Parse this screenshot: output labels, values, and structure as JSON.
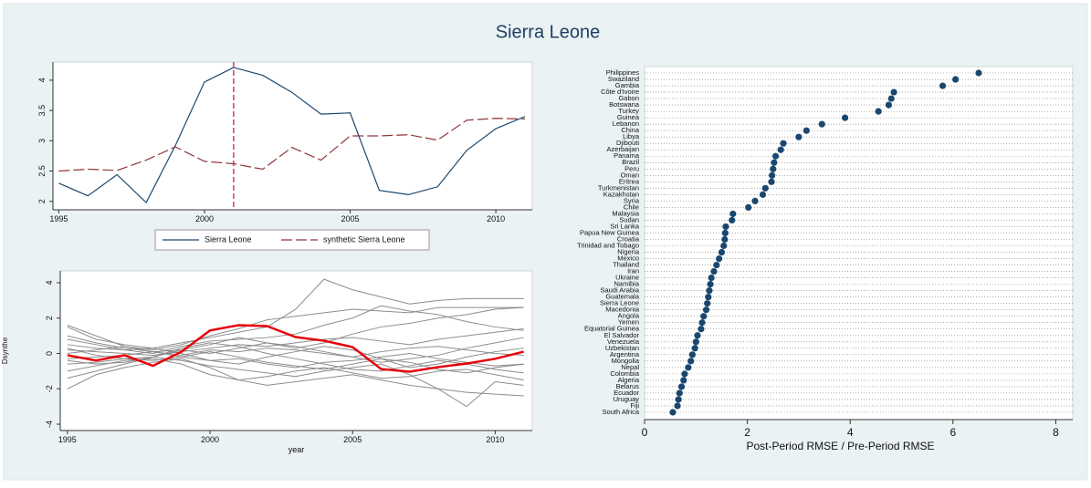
{
  "title": "Sierra Leone",
  "chart_data": [
    {
      "type": "line",
      "x": [
        1995,
        1996,
        1997,
        1998,
        1999,
        2000,
        2001,
        2002,
        2003,
        2004,
        2005,
        2006,
        2007,
        2008,
        2009,
        2010,
        2011
      ],
      "series": [
        {
          "name": "Sierra Leone",
          "color": "#1a476f",
          "dash": false,
          "values": [
            2.3,
            2.09,
            2.44,
            1.98,
            2.92,
            3.97,
            4.21,
            4.08,
            3.8,
            3.44,
            3.46,
            2.18,
            2.11,
            2.24,
            2.84,
            3.2,
            3.4
          ]
        },
        {
          "name": "synthetic Sierra Leone",
          "color": "#90353b",
          "dash": true,
          "values": [
            2.5,
            2.53,
            2.51,
            2.68,
            2.9,
            2.66,
            2.62,
            2.53,
            2.89,
            2.68,
            3.08,
            3.08,
            3.1,
            3.01,
            3.34,
            3.37,
            3.36
          ]
        }
      ],
      "vline": 2001,
      "vline_color": "#c8102e",
      "xlim": [
        1994.8,
        2011.25
      ],
      "xticks": [
        1995,
        2000,
        2005,
        2010
      ],
      "ylim": [
        1.86,
        4.3
      ],
      "yticks": [
        2,
        2.5,
        3,
        3.5,
        4
      ]
    },
    {
      "type": "line",
      "x": [
        1995,
        1996,
        1997,
        1998,
        1999,
        2000,
        2001,
        2002,
        2003,
        2004,
        2005,
        2006,
        2007,
        2008,
        2009,
        2010,
        2011
      ],
      "x_label": "year",
      "y_label": "Dsynthe",
      "background_lines": {
        "color": "#8c8c8c",
        "values": [
          [
            1.5,
            0.8,
            0.5,
            0.3,
            0.6,
            0.9,
            1.2,
            1.5,
            2.5,
            4.2,
            3.6,
            3.2,
            2.8,
            3.0,
            3.1,
            3.1,
            3.1
          ],
          [
            -2.0,
            -1.2,
            -0.8,
            -0.5,
            -0.3,
            -0.8,
            -1.5,
            -1.8,
            -1.6,
            -1.4,
            -1.2,
            -1.5,
            -1.8,
            -2.0,
            -2.2,
            -2.3,
            -2.4
          ],
          [
            1.6,
            1.0,
            0.4,
            0.2,
            0.5,
            1.0,
            1.4,
            1.9,
            2.1,
            2.3,
            2.5,
            2.4,
            2.3,
            2.6,
            2.6,
            2.6,
            2.6
          ],
          [
            0.5,
            0.3,
            0.2,
            0.0,
            0.4,
            0.7,
            0.8,
            0.9,
            1.1,
            1.6,
            2.0,
            2.7,
            2.4,
            2.2,
            1.8,
            1.5,
            1.3
          ],
          [
            -0.6,
            -0.5,
            -0.3,
            -0.2,
            -0.4,
            -0.7,
            -0.9,
            -1.1,
            -1.3,
            -1.0,
            -0.8,
            -0.6,
            -1.2,
            -2.0,
            -3.0,
            -1.6,
            -1.8
          ],
          [
            0.2,
            0.1,
            0.0,
            -0.1,
            0.1,
            0.3,
            0.5,
            0.4,
            0.6,
            0.8,
            0.9,
            0.7,
            0.5,
            0.8,
            1.0,
            1.2,
            1.4
          ],
          [
            -0.3,
            -0.2,
            -0.1,
            0.1,
            -0.2,
            -0.4,
            -0.3,
            -0.6,
            -0.8,
            -0.5,
            -0.4,
            -0.2,
            0.0,
            -0.3,
            -0.5,
            -0.7,
            -0.6
          ],
          [
            1.0,
            0.6,
            0.3,
            0.1,
            0.2,
            0.5,
            0.9,
            0.6,
            0.3,
            0.6,
            1.1,
            1.5,
            1.7,
            2.0,
            2.2,
            2.5,
            2.6
          ],
          [
            -1.0,
            -0.7,
            -0.4,
            -0.3,
            -0.6,
            -1.2,
            -1.5,
            -1.3,
            -1.0,
            -0.8,
            -1.1,
            -1.4,
            -1.3,
            -1.0,
            -0.9,
            -1.2,
            -1.5
          ],
          [
            0.0,
            0.2,
            0.4,
            0.1,
            -0.1,
            0.2,
            0.1,
            0.3,
            0.2,
            0.0,
            -0.2,
            0.1,
            0.3,
            0.4,
            0.2,
            0.0,
            -0.1
          ],
          [
            0.8,
            0.5,
            0.2,
            0.3,
            0.0,
            -0.4,
            -0.6,
            -0.2,
            0.1,
            0.4,
            0.2,
            -0.3,
            -0.8,
            -0.6,
            -0.2,
            0.1,
            0.3
          ],
          [
            -0.4,
            -0.6,
            -0.5,
            -0.2,
            0.2,
            0.0,
            0.3,
            0.6,
            0.4,
            0.1,
            -0.2,
            -0.5,
            -0.3,
            -0.1,
            0.3,
            0.6,
            0.9
          ],
          [
            0.3,
            -0.1,
            -0.3,
            -0.4,
            -0.2,
            0.1,
            -0.2,
            -0.5,
            -0.7,
            -0.9,
            -0.6,
            -0.3,
            -0.5,
            -0.9,
            -1.1,
            -0.8,
            -0.6
          ],
          [
            -1.4,
            -1.0,
            -0.6,
            -0.2,
            0.3,
            0.6,
            0.4,
            0.0,
            -0.3,
            -0.6,
            -0.9,
            -1.0,
            -0.7,
            -0.4,
            -0.6,
            -0.9,
            -1.1
          ]
        ]
      },
      "series": [
        {
          "color": "#e8000b",
          "dash": false,
          "values": [
            -0.1,
            -0.4,
            -0.1,
            -0.7,
            0.1,
            1.3,
            1.6,
            1.55,
            0.93,
            0.72,
            0.36,
            -0.88,
            -1.03,
            -0.77,
            -0.57,
            -0.3,
            0.1
          ]
        }
      ],
      "xlim": [
        1994.75,
        2011.3
      ],
      "xticks": [
        1995,
        2000,
        2005,
        2010
      ],
      "ylim": [
        -4.36,
        4.67
      ],
      "yticks": [
        -4,
        -2,
        0,
        2,
        4
      ]
    },
    {
      "type": "dot",
      "x_label": "Post-Period RMSE / Pre-Period RMSE",
      "color": "#1a476f",
      "categories": [
        "Philippines",
        "Swaziland",
        "Gambia",
        "Côte d'Ivoire",
        "Gabon",
        "Botswana",
        "Turkey",
        "Guinea",
        "Lebanon",
        "China",
        "Libya",
        "Djibouti",
        "Azerbaijan",
        "Panama",
        "Brazil",
        "Peru",
        "Oman",
        "Eritrea",
        "Turkmenistan",
        "Kazakhstan",
        "Syria",
        "Chile",
        "Malaysia",
        "Sudan",
        "Sri Lanka",
        "Papua New Guinea",
        "Croatia",
        "Trinidad and Tobago",
        "Nigeria",
        "Mexico",
        "Thailand",
        "Iran",
        "Ukraine",
        "Namibia",
        "Saudi Arabia",
        "Guatemala",
        "Sierra Leone",
        "Macedonia",
        "Angola",
        "Yemen",
        "Equatorial Guinea",
        "El Salvador",
        "Venezuela",
        "Uzbekistan",
        "Argentina",
        "Mongolia",
        "Nepal",
        "Colombia",
        "Algeria",
        "Belarus",
        "Ecuador",
        "Uruguay",
        "Fiji",
        "South Africa"
      ],
      "values": [
        6.5,
        6.05,
        5.8,
        4.85,
        4.8,
        4.75,
        4.55,
        3.9,
        3.45,
        3.15,
        3.0,
        2.7,
        2.65,
        2.55,
        2.52,
        2.5,
        2.48,
        2.47,
        2.35,
        2.3,
        2.15,
        2.02,
        1.72,
        1.7,
        1.58,
        1.57,
        1.56,
        1.54,
        1.5,
        1.45,
        1.4,
        1.35,
        1.3,
        1.28,
        1.26,
        1.24,
        1.22,
        1.2,
        1.15,
        1.12,
        1.1,
        1.03,
        1.0,
        0.98,
        0.93,
        0.9,
        0.85,
        0.78,
        0.76,
        0.72,
        0.68,
        0.66,
        0.64,
        0.55
      ],
      "xlim": [
        0,
        8.33
      ],
      "xticks": [
        0,
        2,
        4,
        6,
        8
      ],
      "grid": true
    }
  ]
}
